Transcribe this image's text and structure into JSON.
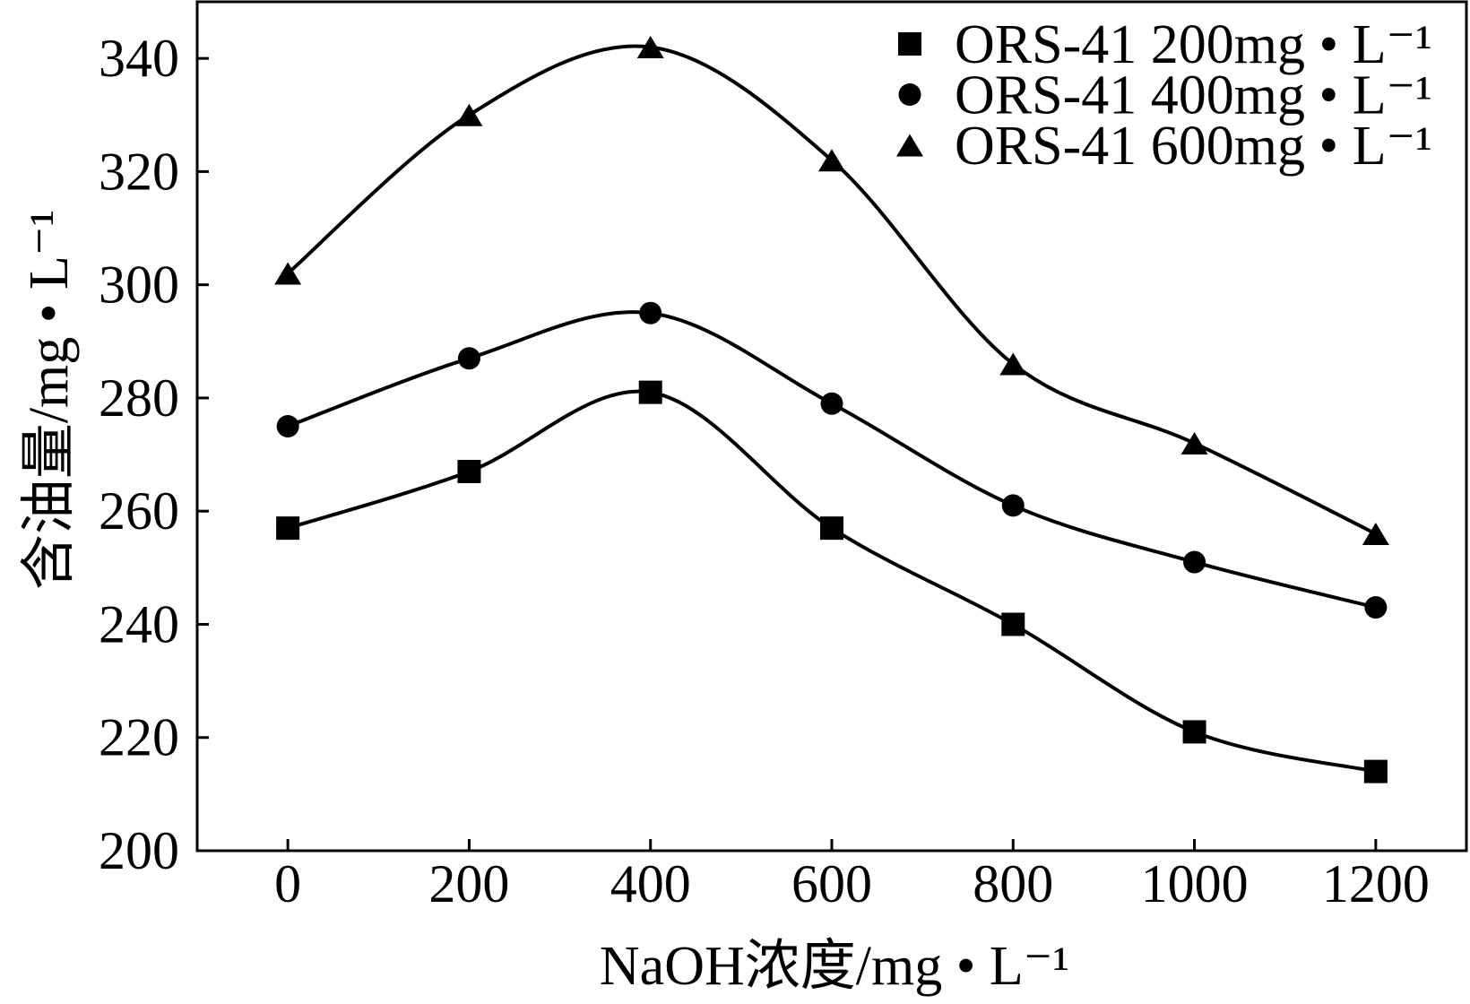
{
  "chart_data": {
    "type": "line",
    "xlabel": "NaOH浓度/mg • L⁻¹",
    "ylabel": "含油量/mg • L⁻¹",
    "xlim": [
      -100,
      1300
    ],
    "ylim": [
      200,
      350
    ],
    "xticks": [
      0,
      200,
      400,
      600,
      800,
      1000,
      1200
    ],
    "yticks": [
      200,
      220,
      240,
      260,
      280,
      300,
      320,
      340
    ],
    "x": [
      0,
      200,
      400,
      600,
      800,
      1000,
      1200
    ],
    "series": [
      {
        "name": "ORS-41 200mg • L⁻¹",
        "marker": "square",
        "color": "#000000",
        "values": [
          257,
          267,
          281,
          257,
          240,
          221,
          214
        ]
      },
      {
        "name": "ORS-41 400mg • L⁻¹",
        "marker": "circle",
        "color": "#000000",
        "values": [
          275,
          287,
          295,
          279,
          261,
          251,
          243
        ]
      },
      {
        "name": "ORS-41 600mg • L⁻¹",
        "marker": "triangle",
        "color": "#000000",
        "values": [
          302,
          330,
          342,
          322,
          286,
          272,
          256
        ]
      }
    ],
    "smooth": true,
    "grid": false,
    "legend": "top-right"
  }
}
